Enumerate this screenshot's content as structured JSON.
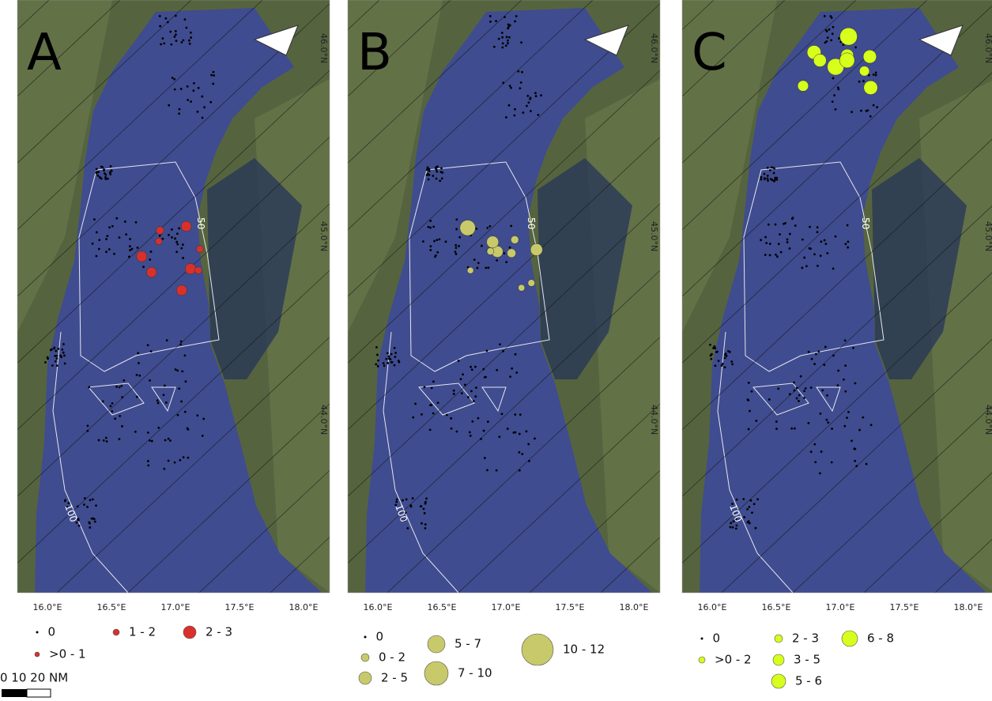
{
  "panels": [
    {
      "letter": "A",
      "color": "#d9302c",
      "legend": [
        {
          "label": "0"
        },
        {
          "label": ">0 - 1"
        },
        {
          "label": "1 - 2"
        },
        {
          "label": "2 - 3"
        }
      ]
    },
    {
      "letter": "B",
      "color": "#c8c96a",
      "legend": [
        {
          "label": "0"
        },
        {
          "label": "0 - 2"
        },
        {
          "label": "2 - 5"
        },
        {
          "label": "5 - 7"
        },
        {
          "label": "7 - 10"
        },
        {
          "label": "10 - 12"
        }
      ]
    },
    {
      "letter": "C",
      "color": "#d6ff1c",
      "legend": [
        {
          "label": "0"
        },
        {
          "label": ">0 - 2"
        },
        {
          "label": "2 - 3"
        },
        {
          "label": "3 - 5"
        },
        {
          "label": "5 - 6"
        },
        {
          "label": "6 - 8"
        }
      ]
    }
  ],
  "lon_labels": [
    "16.0°E",
    "16.5°E",
    "17.0°E",
    "17.5°E",
    "18.0°E"
  ],
  "lat_labels": [
    "46.0°N",
    "45.0°N",
    "44.0°N"
  ],
  "contour_labels": [
    "50",
    "100"
  ],
  "scale_label": "0 10 20 NM"
}
